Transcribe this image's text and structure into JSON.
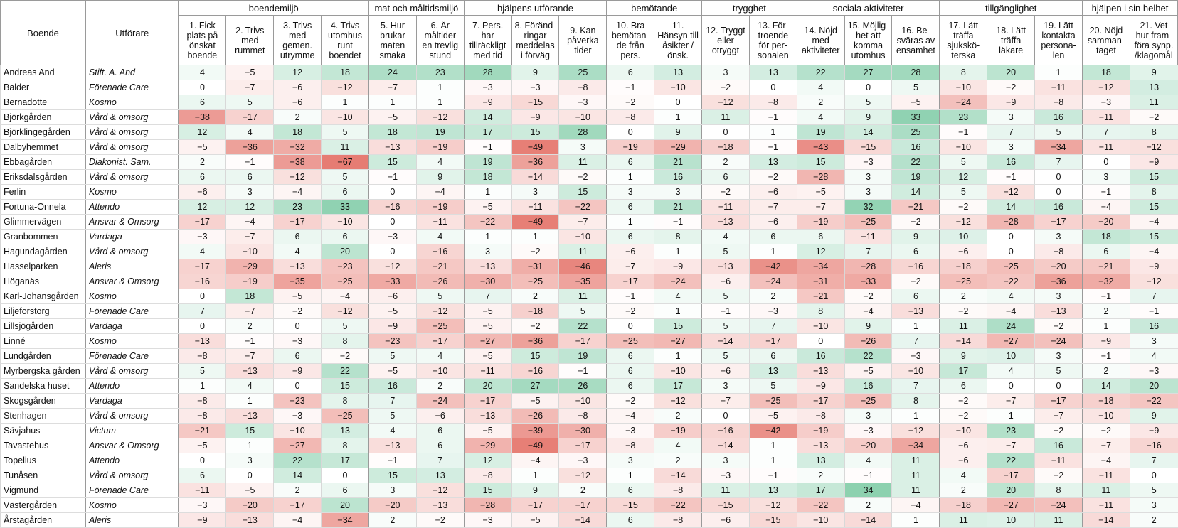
{
  "table": {
    "header_boende": "Boende",
    "header_utforare": "Utförare",
    "categories": [
      {
        "label": "boendemiljö",
        "span": 4
      },
      {
        "label": "mat och måltidsmiljö",
        "span": 2
      },
      {
        "label": "hjälpens utförande",
        "span": 3
      },
      {
        "label": "bemötande",
        "span": 2
      },
      {
        "label": "trygghet",
        "span": 2
      },
      {
        "label": "sociala aktiviteter",
        "span": 3
      },
      {
        "label": "tillgänglighet",
        "span": 3
      },
      {
        "label": "hjälpen i sin helhet",
        "span": 2
      }
    ],
    "questions": [
      [
        "1. Fick",
        "plats på",
        "önskat",
        "boende"
      ],
      [
        "2. Trivs",
        "med",
        "rummet"
      ],
      [
        "3. Trivs",
        "med",
        "gemen.",
        "utrymme"
      ],
      [
        "4. Trivs",
        "utomhus",
        "runt",
        "boendet"
      ],
      [
        "5. Hur",
        "brukar",
        "maten",
        "smaka"
      ],
      [
        "6. Är",
        "måltider",
        "en trevlig",
        "stund"
      ],
      [
        "7. Pers.",
        "har",
        "tillräckligt",
        "med tid"
      ],
      [
        "8. Föränd-",
        "ringar",
        "meddelas",
        "i förväg"
      ],
      [
        "9. Kan",
        "påverka",
        "tider"
      ],
      [
        "10. Bra",
        "bemötan-",
        "de från",
        "pers."
      ],
      [
        "11.",
        "Hänsyn till",
        "åsikter /",
        "önsk."
      ],
      [
        "12. Tryggt",
        "eller",
        "otryggt"
      ],
      [
        "13. För-",
        "troende",
        "för per-",
        "sonalen"
      ],
      [
        "14. Nöjd",
        "med",
        "aktiviteter"
      ],
      [
        "15. Möjlig-",
        "het att",
        "komma",
        "utomhus"
      ],
      [
        "16. Be-",
        "sväras av",
        "ensamhet"
      ],
      [
        "17. Lätt",
        "träffa",
        "sjukskö-",
        "terska"
      ],
      [
        "18. Lätt",
        "träffa",
        "läkare"
      ],
      [
        "19. Lätt",
        "kontakta",
        "persona-",
        "len"
      ],
      [
        "20. Nöjd",
        "samman-",
        "taget"
      ],
      [
        "21. Vet",
        "hur fram-",
        "föra synp.",
        "/klagomål"
      ]
    ],
    "rows": [
      {
        "boende": "Andreas And",
        "utforare": "Stift. A. And",
        "values": [
          4,
          -5,
          12,
          18,
          24,
          23,
          28,
          9,
          25,
          6,
          13,
          3,
          13,
          22,
          27,
          28,
          8,
          20,
          1,
          18,
          9
        ]
      },
      {
        "boende": "Balder",
        "utforare": "Förenade Care",
        "values": [
          0,
          -7,
          -6,
          -12,
          -7,
          1,
          -3,
          -3,
          -8,
          -1,
          -10,
          -2,
          0,
          4,
          0,
          5,
          -10,
          -2,
          -11,
          -12,
          13
        ]
      },
      {
        "boende": "Bernadotte",
        "utforare": "Kosmo",
        "values": [
          6,
          5,
          -6,
          1,
          1,
          1,
          -9,
          -15,
          -3,
          -2,
          0,
          -12,
          -8,
          2,
          5,
          -5,
          -24,
          -9,
          -8,
          -3,
          11
        ]
      },
      {
        "boende": "Björkgården",
        "utforare": "Vård & omsorg",
        "values": [
          -38,
          -17,
          2,
          -10,
          -5,
          -12,
          14,
          -9,
          -10,
          -8,
          1,
          11,
          -1,
          4,
          9,
          33,
          23,
          3,
          16,
          -11,
          -2
        ]
      },
      {
        "boende": "Björklingegården",
        "utforare": "Vård & omsorg",
        "values": [
          12,
          4,
          18,
          5,
          18,
          19,
          17,
          15,
          28,
          0,
          9,
          0,
          1,
          19,
          14,
          25,
          -1,
          7,
          5,
          7,
          8
        ]
      },
      {
        "boende": "Dalbyhemmet",
        "utforare": "Vård & omsorg",
        "values": [
          -5,
          -36,
          -32,
          11,
          -13,
          -19,
          -1,
          -49,
          3,
          -19,
          -29,
          -18,
          -1,
          -43,
          -15,
          16,
          -10,
          3,
          -34,
          -11,
          -12
        ]
      },
      {
        "boende": "Ebbagården",
        "utforare": "Diakonist. Sam.",
        "values": [
          2,
          -1,
          -38,
          -67,
          15,
          4,
          19,
          -36,
          11,
          6,
          21,
          2,
          13,
          15,
          -3,
          22,
          5,
          16,
          7,
          0,
          -9
        ]
      },
      {
        "boende": "Eriksdalsgården",
        "utforare": "Vård & omsorg",
        "values": [
          6,
          6,
          -12,
          5,
          -1,
          9,
          18,
          -14,
          -2,
          1,
          16,
          6,
          -2,
          -28,
          3,
          19,
          12,
          -1,
          0,
          3,
          15
        ]
      },
      {
        "boende": "Ferlin",
        "utforare": "Kosmo",
        "values": [
          -6,
          3,
          -4,
          6,
          0,
          -4,
          1,
          3,
          15,
          3,
          3,
          -2,
          -6,
          -5,
          3,
          14,
          5,
          -12,
          0,
          -1,
          8
        ]
      },
      {
        "boende": "Fortuna-Onnela",
        "utforare": "Attendo",
        "values": [
          12,
          12,
          23,
          33,
          -16,
          -19,
          -5,
          -11,
          -22,
          6,
          21,
          -11,
          -7,
          -7,
          32,
          -21,
          -2,
          14,
          16,
          -4,
          15
        ]
      },
      {
        "boende": "Glimmervägen",
        "utforare": "Ansvar & Omsorg",
        "values": [
          -17,
          -4,
          -17,
          -10,
          0,
          -11,
          -22,
          -49,
          -7,
          1,
          -1,
          -13,
          -6,
          -19,
          -25,
          -2,
          -12,
          -28,
          -17,
          -20,
          -4
        ]
      },
      {
        "boende": "Granbommen",
        "utforare": "Vardaga",
        "values": [
          -3,
          -7,
          6,
          6,
          -3,
          4,
          1,
          1,
          -10,
          6,
          8,
          4,
          6,
          6,
          -11,
          9,
          10,
          0,
          3,
          18,
          15
        ]
      },
      {
        "boende": "Hagundagården",
        "utforare": "Vård & omsorg",
        "values": [
          4,
          -10,
          4,
          20,
          0,
          -16,
          3,
          -2,
          11,
          -6,
          1,
          5,
          1,
          12,
          7,
          6,
          -6,
          0,
          -8,
          6,
          -4
        ]
      },
      {
        "boende": "Hasselparken",
        "utforare": "Aleris",
        "values": [
          -17,
          -29,
          -13,
          -23,
          -12,
          -21,
          -13,
          -31,
          -46,
          -7,
          -9,
          -13,
          -42,
          -34,
          -28,
          -16,
          -18,
          -25,
          -20,
          -21,
          -9
        ]
      },
      {
        "boende": "Höganäs",
        "utforare": "Ansvar & Omsorg",
        "values": [
          -16,
          -19,
          -35,
          -25,
          -33,
          -26,
          -30,
          -25,
          -35,
          -17,
          -24,
          -6,
          -24,
          -31,
          -33,
          -2,
          -25,
          -22,
          -36,
          -32,
          -12
        ]
      },
      {
        "boende": "Karl-Johansgården",
        "utforare": "Kosmo",
        "values": [
          0,
          18,
          -5,
          -4,
          -6,
          5,
          7,
          2,
          11,
          -1,
          4,
          5,
          2,
          -21,
          -2,
          6,
          2,
          4,
          3,
          -1,
          7
        ]
      },
      {
        "boende": "Liljeforstorg",
        "utforare": "Förenade Care",
        "values": [
          7,
          -7,
          -2,
          -12,
          -5,
          -12,
          -5,
          -18,
          5,
          -2,
          1,
          -1,
          -3,
          8,
          -4,
          -13,
          -2,
          -4,
          -13,
          2,
          -1
        ]
      },
      {
        "boende": "Lillsjögården",
        "utforare": "Vardaga",
        "values": [
          0,
          2,
          0,
          5,
          -9,
          -25,
          -5,
          -2,
          22,
          0,
          15,
          5,
          7,
          -10,
          9,
          1,
          11,
          24,
          -2,
          1,
          16
        ]
      },
      {
        "boende": "Linné",
        "utforare": "Kosmo",
        "values": [
          -13,
          -1,
          -3,
          8,
          -23,
          -17,
          -27,
          -36,
          -17,
          -25,
          -27,
          -14,
          -17,
          0,
          -26,
          7,
          -14,
          -27,
          -24,
          -9,
          3
        ]
      },
      {
        "boende": "Lundgården",
        "utforare": "Förenade Care",
        "values": [
          -8,
          -7,
          6,
          -2,
          5,
          4,
          -5,
          15,
          19,
          6,
          1,
          5,
          6,
          16,
          22,
          -3,
          9,
          10,
          3,
          -1,
          4
        ]
      },
      {
        "boende": "Myrbergska gården",
        "utforare": "Vård & omsorg",
        "values": [
          5,
          -13,
          -9,
          22,
          -5,
          -10,
          -11,
          -16,
          -1,
          6,
          -10,
          -6,
          13,
          -13,
          -5,
          -10,
          17,
          4,
          5,
          2,
          -3
        ]
      },
      {
        "boende": "Sandelska huset",
        "utforare": "Attendo",
        "values": [
          1,
          4,
          0,
          15,
          16,
          2,
          20,
          27,
          26,
          6,
          17,
          3,
          5,
          -9,
          16,
          7,
          6,
          0,
          0,
          14,
          20
        ]
      },
      {
        "boende": "Skogsgården",
        "utforare": "Vardaga",
        "values": [
          -8,
          1,
          -23,
          8,
          7,
          -24,
          -17,
          -5,
          -10,
          -2,
          -12,
          -7,
          -25,
          -17,
          -25,
          8,
          -2,
          -7,
          -17,
          -18,
          -22
        ]
      },
      {
        "boende": "Stenhagen",
        "utforare": "Vård & omsorg",
        "values": [
          -8,
          -13,
          -3,
          -25,
          5,
          -6,
          -13,
          -26,
          -8,
          -4,
          2,
          0,
          -5,
          -8,
          3,
          1,
          -2,
          1,
          -7,
          -10,
          9
        ]
      },
      {
        "boende": "Sävjahus",
        "utforare": "Victum",
        "values": [
          -21,
          15,
          -10,
          13,
          4,
          6,
          -5,
          -39,
          -30,
          -3,
          -19,
          -16,
          -42,
          -19,
          -3,
          -12,
          -10,
          23,
          -2,
          -2,
          -9
        ]
      },
      {
        "boende": "Tavastehus",
        "utforare": "Ansvar & Omsorg",
        "values": [
          -5,
          1,
          -27,
          8,
          -13,
          6,
          -29,
          -49,
          -17,
          -8,
          4,
          -14,
          1,
          -13,
          -20,
          -34,
          -6,
          -7,
          16,
          -7,
          -16
        ]
      },
      {
        "boende": "Topelius",
        "utforare": "Attendo",
        "values": [
          0,
          3,
          22,
          17,
          -1,
          7,
          12,
          -4,
          -3,
          3,
          2,
          3,
          1,
          13,
          4,
          11,
          -6,
          22,
          -11,
          -4,
          7
        ]
      },
      {
        "boende": "Tunåsen",
        "utforare": "Vård & omsorg",
        "values": [
          6,
          0,
          14,
          0,
          15,
          13,
          -8,
          1,
          -12,
          1,
          -14,
          -3,
          -1,
          2,
          -1,
          11,
          4,
          -17,
          -2,
          -11,
          0
        ]
      },
      {
        "boende": "Vigmund",
        "utforare": "Förenade Care",
        "values": [
          -11,
          -5,
          2,
          6,
          3,
          -12,
          15,
          9,
          2,
          6,
          -8,
          11,
          13,
          17,
          34,
          11,
          2,
          20,
          8,
          11,
          5
        ]
      },
      {
        "boende": "Västergården",
        "utforare": "Kosmo",
        "values": [
          -3,
          -20,
          -17,
          20,
          -20,
          -13,
          -28,
          -17,
          -17,
          -15,
          -22,
          -15,
          -12,
          -22,
          2,
          -4,
          -18,
          -27,
          -24,
          -11,
          3
        ]
      },
      {
        "boende": "Årstagården",
        "utforare": "Aleris",
        "values": [
          -9,
          -13,
          -4,
          -34,
          2,
          -2,
          -3,
          -5,
          -14,
          6,
          -8,
          -6,
          -15,
          -10,
          -14,
          1,
          11,
          10,
          11,
          -14,
          2
        ]
      }
    ]
  },
  "colors": {
    "positive": "#57bb8a",
    "negative": "#e67c73",
    "neutral": "#ffffff"
  }
}
